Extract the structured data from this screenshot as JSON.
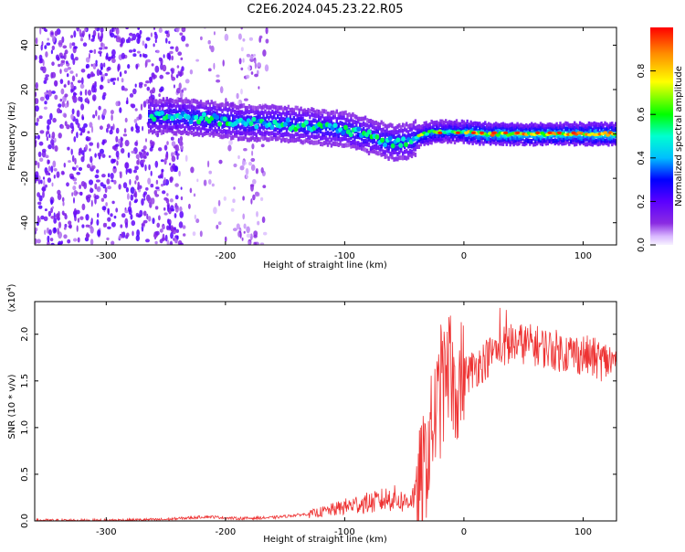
{
  "title": "C2E6.2024.045.23.22.R05",
  "chart_data": [
    {
      "type": "heatmap",
      "xlabel": "Height of straight line (km)",
      "ylabel": "Frequency (Hz)",
      "xlim": [
        -360,
        128
      ],
      "ylim": [
        -50,
        48
      ],
      "xticks": [
        -300,
        -200,
        -100,
        0,
        100
      ],
      "yticks": [
        -40,
        -20,
        0,
        20,
        40
      ],
      "grid": false,
      "colorbar": {
        "label": "Normalized spectral amplitude",
        "range": [
          0,
          1
        ],
        "ticks": [
          "0.0",
          "0.2",
          "0.4",
          "0.6",
          "0.8"
        ],
        "colormap": [
          "#f7f2ff",
          "#d9b8ff",
          "#8a2be2",
          "#5b00ff",
          "#0000ff",
          "#00bfff",
          "#00ffd0",
          "#00ff00",
          "#ffff00",
          "#ff8c00",
          "#ff0000"
        ]
      },
      "ridge": {
        "x": [
          -260,
          -240,
          -220,
          -200,
          -180,
          -160,
          -140,
          -120,
          -100,
          -80,
          -60,
          -45,
          -35,
          -25,
          -15,
          0,
          20,
          40,
          60,
          80,
          100,
          128
        ],
        "frequency": [
          8,
          8,
          7,
          6,
          5,
          5,
          4,
          3,
          2,
          -1,
          -4,
          -3,
          0,
          1,
          1,
          1,
          0,
          0,
          0,
          0,
          0,
          0
        ]
      }
    },
    {
      "type": "line",
      "xlabel": "Height of straight line (km)",
      "ylabel": "SNR (10 * v/v)",
      "y_multiplier": "(x10",
      "y_multiplier_exp": "4",
      "xlim": [
        -360,
        128
      ],
      "ylim": [
        0,
        2.35
      ],
      "xticks": [
        -300,
        -200,
        -100,
        0,
        100
      ],
      "yticks": [
        "0.0",
        "0.5",
        "1.0",
        "1.5",
        "2.0"
      ],
      "grid": false,
      "series": [
        {
          "color": "#ee3333",
          "x": [
            -360,
            -300,
            -250,
            -215,
            -190,
            -160,
            -130,
            -110,
            -90,
            -75,
            -60,
            -50,
            -40,
            -35,
            -30,
            -25,
            -20,
            -15,
            -10,
            -5,
            0,
            10,
            20,
            30,
            40,
            50,
            60,
            80,
            100,
            115,
            128
          ],
          "y": [
            0.0,
            0.0,
            0.01,
            0.04,
            0.02,
            0.03,
            0.07,
            0.12,
            0.18,
            0.2,
            0.25,
            0.2,
            0.28,
            0.45,
            0.75,
            1.1,
            1.3,
            1.4,
            1.45,
            1.5,
            1.55,
            1.65,
            1.75,
            1.85,
            1.9,
            1.9,
            1.88,
            1.82,
            1.78,
            1.72,
            1.7
          ]
        }
      ]
    }
  ]
}
